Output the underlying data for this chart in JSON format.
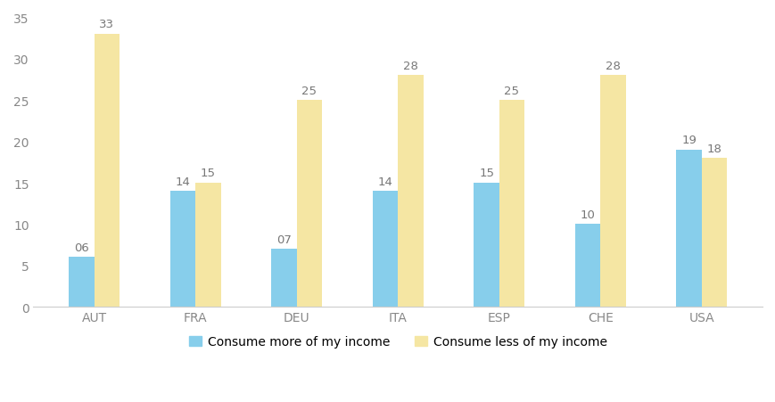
{
  "categories": [
    "AUT",
    "FRA",
    "DEU",
    "ITA",
    "ESP",
    "CHE",
    "USA"
  ],
  "series": [
    {
      "name": "Consume more of my income",
      "values": [
        6,
        14,
        7,
        14,
        15,
        10,
        19
      ],
      "labels": [
        "06",
        "14",
        "07",
        "14",
        "15",
        "10",
        "19"
      ],
      "color": "#87CEEB"
    },
    {
      "name": "Consume less of my income",
      "values": [
        33,
        15,
        25,
        28,
        25,
        28,
        18
      ],
      "labels": [
        "33",
        "15",
        "25",
        "28",
        "25",
        "28",
        "18"
      ],
      "color": "#F5E6A3"
    }
  ],
  "ylim": [
    0,
    35
  ],
  "yticks": [
    0,
    5,
    10,
    15,
    20,
    25,
    30,
    35
  ],
  "bar_width": 0.25,
  "label_fontsize": 9.5,
  "tick_fontsize": 10,
  "legend_fontsize": 10,
  "background_color": "#ffffff",
  "axis_color": "#cccccc",
  "label_color": "#777777",
  "tick_color": "#888888"
}
